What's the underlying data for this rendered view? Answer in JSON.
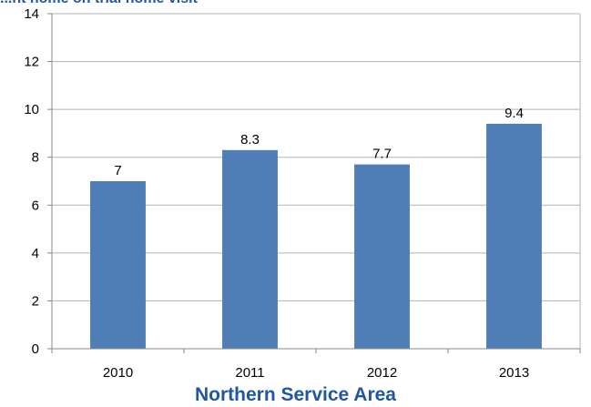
{
  "header": {
    "clipped_title": "...nt home on trial home visit"
  },
  "chart_data": {
    "type": "bar",
    "title": "Northern Service Area",
    "categories": [
      "2010",
      "2011",
      "2012",
      "2013"
    ],
    "values": [
      7,
      8.3,
      7.7,
      9.4
    ],
    "data_labels": [
      "7",
      "8.3",
      "7.7",
      "9.4"
    ],
    "ylim": [
      0,
      14
    ],
    "yticks": [
      0,
      2,
      4,
      6,
      8,
      10,
      12,
      14
    ],
    "ytick_labels": [
      "0",
      "2",
      "4",
      "6",
      "8",
      "10",
      "12",
      "14"
    ],
    "xlabel": "",
    "ylabel": "",
    "grid": true,
    "legend": "none",
    "bar_color": "#4f7db5",
    "grid_color": "#b3b3b3",
    "title_color": "#1f57a4"
  }
}
